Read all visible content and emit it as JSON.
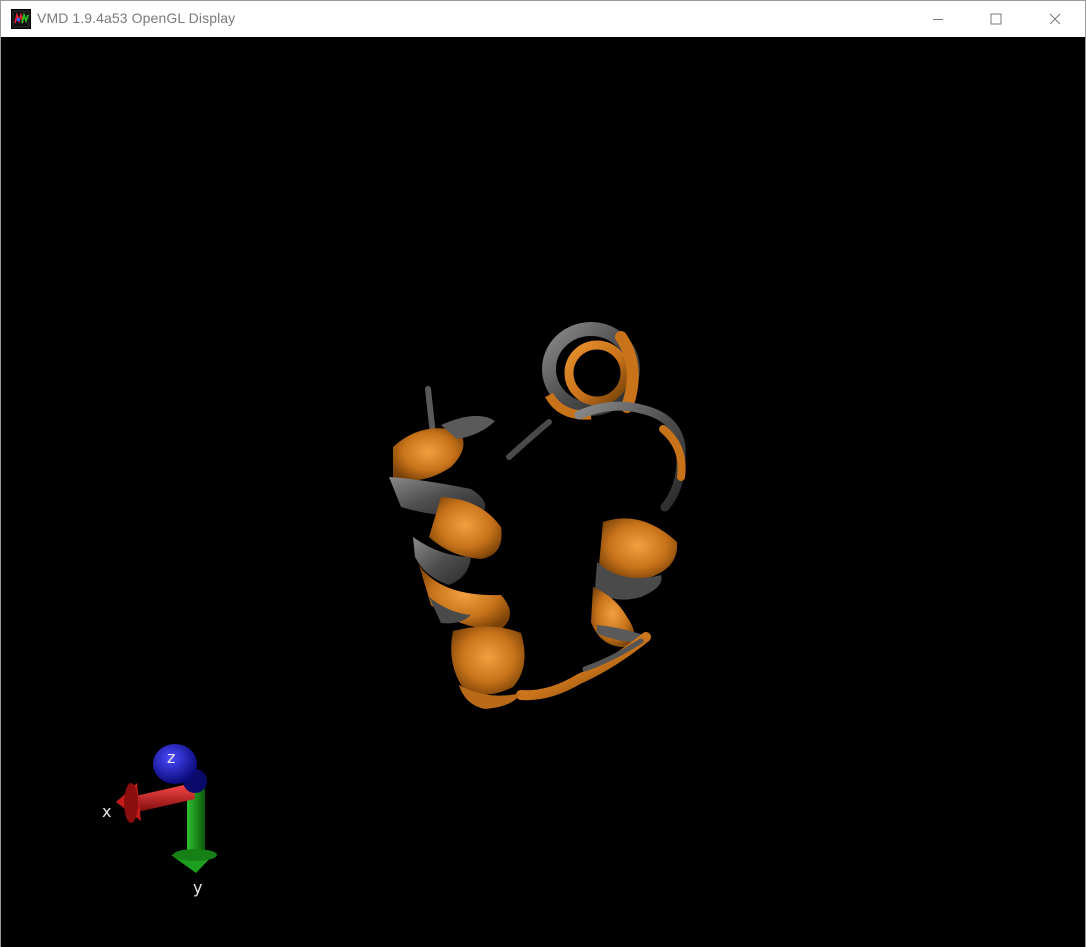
{
  "window": {
    "title": "VMD 1.9.4a53 OpenGL Display",
    "icon": "vmd-app-icon",
    "controls": {
      "minimize": "minimize-icon",
      "maximize": "maximize-icon",
      "close": "close-icon"
    }
  },
  "display": {
    "background": "#000000",
    "molecule_colors": {
      "helix": "#c8731a",
      "coil": "#5a5a5a"
    },
    "axes": {
      "x_label": "x",
      "y_label": "y",
      "z_label": "z",
      "x_color": "#c41a1a",
      "y_color": "#1ea01e",
      "z_color": "#1a1ac8"
    }
  }
}
